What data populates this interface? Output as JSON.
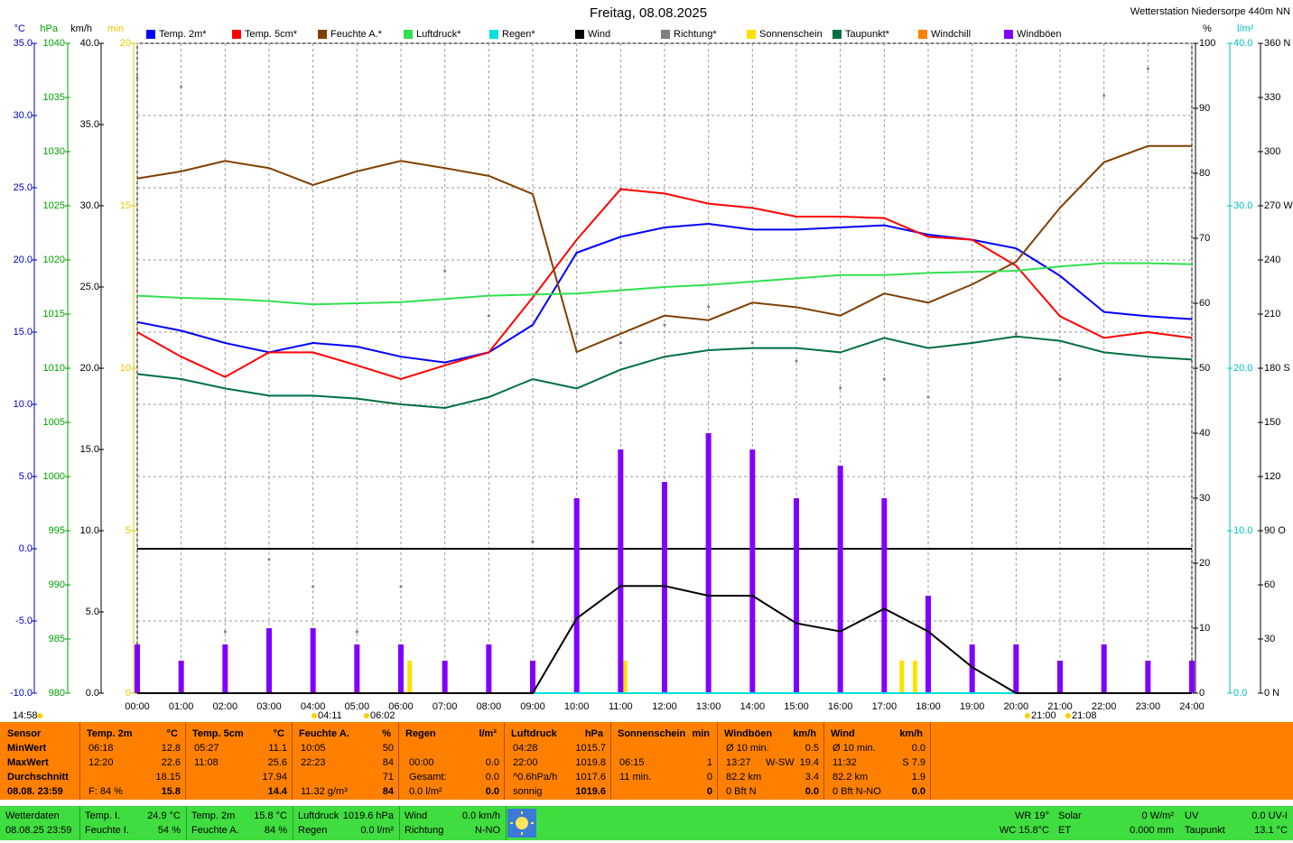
{
  "chart_data": {
    "type": "line",
    "title": "Freitag, 08.08.2025",
    "subtitle": "Wetterstation Niedersorpe 440m NN",
    "x": [
      0,
      1,
      2,
      3,
      4,
      5,
      6,
      7,
      8,
      9,
      10,
      11,
      12,
      13,
      14,
      15,
      16,
      17,
      18,
      19,
      20,
      21,
      22,
      23,
      24
    ],
    "xlim": [
      0,
      24
    ],
    "xticks": [
      {
        "value": 0,
        "label": "00:00"
      },
      {
        "value": 1,
        "label": "01:00"
      },
      {
        "value": 2,
        "label": "02:00"
      },
      {
        "value": 3,
        "label": "03:00"
      },
      {
        "value": 4,
        "label": "04:00"
      },
      {
        "value": 5,
        "label": "05:00"
      },
      {
        "value": 6,
        "label": "06:00"
      },
      {
        "value": 7,
        "label": "07:00"
      },
      {
        "value": 8,
        "label": "08:00"
      },
      {
        "value": 9,
        "label": "09:00"
      },
      {
        "value": 10,
        "label": "10:00"
      },
      {
        "value": 11,
        "label": "11:00"
      },
      {
        "value": 12,
        "label": "12:00"
      },
      {
        "value": 13,
        "label": "13:00"
      },
      {
        "value": 14,
        "label": "14:00"
      },
      {
        "value": 15,
        "label": "15:00"
      },
      {
        "value": 16,
        "label": "16:00"
      },
      {
        "value": 17,
        "label": "17:00"
      },
      {
        "value": 18,
        "label": "18:00"
      },
      {
        "value": 19,
        "label": "19:00"
      },
      {
        "value": 20,
        "label": "20:00"
      },
      {
        "value": 21,
        "label": "21:00"
      },
      {
        "value": 22,
        "label": "22:00"
      },
      {
        "value": 23,
        "label": "23:00"
      },
      {
        "value": 24,
        "label": "24:00"
      }
    ],
    "grid": true,
    "zero_line": 0,
    "axes": {
      "y": {
        "label": "°C",
        "color": "#0000c8",
        "lim": [
          -10,
          35
        ],
        "ticks": [
          {
            "value": 35,
            "label": "35.0"
          },
          {
            "value": 30,
            "label": "30.0"
          },
          {
            "value": 25,
            "label": "25.0"
          },
          {
            "value": 20,
            "label": "20.0"
          },
          {
            "value": 15,
            "label": "15.0"
          },
          {
            "value": 10,
            "label": "10.0"
          },
          {
            "value": 5,
            "label": "5.0"
          },
          {
            "value": 0,
            "label": "0.0"
          },
          {
            "value": -5,
            "label": "-5.0"
          },
          {
            "value": -10,
            "label": "-10.0"
          }
        ]
      },
      "y3": {
        "label": "hPa",
        "color": "#00a000",
        "lim": [
          980,
          1040
        ],
        "ticks": [
          1040,
          1035,
          1030,
          1025,
          1020,
          1015,
          1010,
          1005,
          1000,
          995,
          990,
          985,
          980
        ]
      },
      "y4": {
        "label": "km/h",
        "color": "#000000",
        "lim": [
          0,
          40
        ],
        "ticks": [
          {
            "value": 40,
            "label": "40.0"
          },
          {
            "value": 35,
            "label": "35.0"
          },
          {
            "value": 30,
            "label": "30.0"
          },
          {
            "value": 25,
            "label": "25.0"
          },
          {
            "value": 20,
            "label": "20.0"
          },
          {
            "value": 15,
            "label": "15.0"
          },
          {
            "value": 10,
            "label": "10.0"
          },
          {
            "value": 5,
            "label": "5.0"
          },
          {
            "value": 0,
            "label": "0.0"
          }
        ]
      },
      "y5": {
        "label": "min",
        "color": "#e6c800",
        "lim": [
          0,
          20
        ],
        "ticks": [
          20,
          15,
          10,
          5,
          0
        ]
      },
      "y2": {
        "label": "%",
        "color": "#000000",
        "lim": [
          0,
          100
        ],
        "ticks": [
          100,
          90,
          80,
          70,
          60,
          50,
          40,
          30,
          20,
          10,
          0
        ]
      },
      "y6": {
        "label": "l/m²",
        "color": "#00c0c0",
        "lim": [
          0,
          40
        ],
        "ticks": [
          {
            "value": 40,
            "label": "40.0"
          },
          {
            "value": 30,
            "label": "30.0"
          },
          {
            "value": 20,
            "label": "20.0"
          },
          {
            "value": 10,
            "label": "10.0"
          },
          {
            "value": 0,
            "label": "0.0"
          }
        ]
      },
      "y7": {
        "color": "#000000",
        "lim": [
          0,
          360
        ],
        "ticks": [
          {
            "value": 360,
            "label": "360 N"
          },
          330,
          300,
          {
            "value": 270,
            "label": "270 W"
          },
          240,
          210,
          {
            "value": 180,
            "label": "180 S"
          },
          150,
          120,
          {
            "value": 90,
            "label": "90 O"
          },
          60,
          30,
          {
            "value": 0,
            "label": "0 N"
          }
        ]
      }
    },
    "series": [
      {
        "name": "Temp. 2m*",
        "color": "#0000ff",
        "axis": "y",
        "mark": "line",
        "values": [
          15.7,
          15.1,
          14.25,
          13.6,
          14.25,
          14.0,
          13.3,
          12.9,
          13.6,
          15.5,
          20.5,
          21.6,
          22.25,
          22.5,
          22.1,
          22.1,
          22.25,
          22.4,
          21.75,
          21.4,
          20.8,
          18.9,
          16.4,
          16.1,
          15.9
        ]
      },
      {
        "name": "Temp. 5cm*",
        "color": "#ff0000",
        "axis": "y",
        "mark": "line",
        "values": [
          15.0,
          13.3,
          11.9,
          13.6,
          13.6,
          12.7,
          11.75,
          12.7,
          13.6,
          17.4,
          21.4,
          24.9,
          24.6,
          23.9,
          23.6,
          23.0,
          23.0,
          22.9,
          21.6,
          21.4,
          19.6,
          16.1,
          14.6,
          15.0,
          14.6
        ]
      },
      {
        "name": "Feuchte A.*",
        "color": "#804000",
        "axis": "y2",
        "mark": "line",
        "values": [
          79.2,
          80.3,
          81.9,
          80.8,
          78.2,
          80.3,
          81.9,
          80.8,
          79.6,
          76.8,
          52.5,
          55.3,
          58.1,
          57.4,
          60.1,
          59.4,
          58.1,
          61.5,
          60.1,
          62.9,
          66.4,
          74.7,
          81.7,
          84.2,
          84.2
        ]
      },
      {
        "name": "Luftdruck*",
        "color": "#30e050",
        "axis": "y3",
        "mark": "line",
        "values": [
          1016.7,
          1016.5,
          1016.4,
          1016.2,
          1015.9,
          1016.0,
          1016.1,
          1016.4,
          1016.7,
          1016.8,
          1016.9,
          1017.2,
          1017.5,
          1017.7,
          1018.0,
          1018.3,
          1018.6,
          1018.6,
          1018.8,
          1018.9,
          1019.0,
          1019.4,
          1019.7,
          1019.7,
          1019.6
        ]
      },
      {
        "name": "Regen*",
        "color": "#00e0e0",
        "axis": "y6",
        "mark": "line",
        "values": [
          0,
          0,
          0,
          0,
          0,
          0,
          0,
          0,
          0,
          0,
          0,
          0,
          0,
          0,
          0,
          0,
          0,
          0,
          0,
          0,
          0,
          0,
          0,
          0,
          0
        ]
      },
      {
        "name": "Wind",
        "color": "#000000",
        "axis": "y4",
        "mark": "line",
        "values": [
          0,
          0,
          0,
          0,
          0,
          0,
          0,
          0,
          0,
          0,
          4.6,
          6.6,
          6.6,
          6.0,
          6.0,
          4.3,
          3.8,
          5.2,
          3.8,
          1.6,
          0,
          0,
          0,
          0,
          0
        ]
      },
      {
        "name": "Richtung*",
        "color": "#808080",
        "axis": "y7",
        "mark": "scatter",
        "values": [
          341,
          336,
          34,
          74,
          59,
          34,
          59,
          234,
          209,
          84,
          199,
          194,
          204,
          214,
          194,
          184,
          169,
          174,
          164,
          194,
          199,
          174,
          331,
          346,
          64
        ]
      },
      {
        "name": "Sonnenschein",
        "color": "#ffe000",
        "axis": "y5",
        "mark": "bar",
        "x": [
          6.2,
          11.1,
          17.4,
          17.7
        ],
        "values": [
          1,
          1,
          1,
          1
        ]
      },
      {
        "name": "Taupunkt*",
        "color": "#007040",
        "axis": "y",
        "mark": "line",
        "values": [
          12.1,
          11.75,
          11.1,
          10.6,
          10.6,
          10.4,
          10.0,
          9.75,
          10.5,
          11.75,
          11.1,
          12.4,
          13.3,
          13.75,
          13.9,
          13.9,
          13.6,
          14.6,
          13.9,
          14.25,
          14.7,
          14.4,
          13.6,
          13.3,
          13.1
        ]
      },
      {
        "name": "Windchill",
        "color": "#ff8000"
      },
      {
        "name": "Windböen",
        "color": "#8000ff",
        "axis": "y4",
        "mark": "bar",
        "values": [
          3,
          2,
          3,
          4,
          4,
          3,
          3,
          2,
          3,
          2,
          12,
          15,
          13,
          16,
          15,
          12,
          14,
          12,
          6,
          3,
          3,
          2,
          3,
          2,
          2
        ]
      }
    ],
    "sun_times": [
      "14:58",
      "04:11",
      "06:02",
      "21:00",
      "21:08"
    ]
  },
  "stats": {
    "sensor": {
      "header": "Sensor",
      "rows": [
        "MinWert",
        "MaxWert",
        "Durchschnitt",
        "08.08. 23:59"
      ]
    },
    "blocks": [
      {
        "name": "Temp. 2m",
        "unit": "°C",
        "rows": [
          {
            "l": "06:18",
            "r": "12.8"
          },
          {
            "l": "12:20",
            "r": "22.6"
          },
          {
            "r": "18.15"
          },
          {
            "l": "F: 84 %",
            "r": "15.8"
          }
        ]
      },
      {
        "name": "Temp. 5cm",
        "unit": "°C",
        "rows": [
          {
            "l": "05:27",
            "r": "11.1"
          },
          {
            "l": "11:08",
            "r": "25.6"
          },
          {
            "r": "17.94"
          },
          {
            "r": "14.4"
          }
        ]
      },
      {
        "name": "Feuchte A.",
        "unit": "%",
        "rows": [
          {
            "l": "10:05",
            "r": "50"
          },
          {
            "l": "22:23",
            "r": "84"
          },
          {
            "r": "71"
          },
          {
            "l": "11.32 g/m³",
            "r": "84"
          }
        ]
      },
      {
        "name": "Regen",
        "unit": "l/m²",
        "rows": [
          {},
          {
            "l": "00:00",
            "r": "0.0"
          },
          {
            "l": "Gesamt:",
            "r": "0.0"
          },
          {
            "l": "0.0 l/m²",
            "r": "0.0"
          }
        ]
      },
      {
        "name": "Luftdruck",
        "unit": "hPa",
        "rows": [
          {
            "l": "04:28",
            "r": "1015.7"
          },
          {
            "l": "22:00",
            "r": "1019.8"
          },
          {
            "l": "^0.6hPa/h",
            "r": "1017.6"
          },
          {
            "l": "sonnig",
            "r": "1019.6"
          }
        ]
      },
      {
        "name": "Sonnenschein",
        "unit": "min",
        "rows": [
          {},
          {
            "l": "06:15",
            "r": "1"
          },
          {
            "l": "11 min.",
            "r": "0"
          },
          {
            "r": "0"
          }
        ]
      },
      {
        "name": "Windböen",
        "unit": "km/h",
        "rows": [
          {
            "l": "Ø 10 min.",
            "r": "0.5"
          },
          {
            "l": "13:27",
            "m": "W-SW",
            "r": "19.4"
          },
          {
            "l": "82.2 km",
            "r": "3.4"
          },
          {
            "l": "0 Bft N",
            "r": "0.0"
          }
        ]
      },
      {
        "name": "Wind",
        "unit": "km/h",
        "rows": [
          {
            "l": "Ø 10 min.",
            "r": "0.0"
          },
          {
            "l": "11:32",
            "r": "S 7.9"
          },
          {
            "l": "82.2 km",
            "r": "1.9"
          },
          {
            "l": "0 Bft N-NO",
            "r": "0.0"
          }
        ]
      }
    ]
  },
  "status": [
    {
      "rows": [
        [
          "Wetterdaten"
        ],
        [
          "08.08.25 23:59"
        ]
      ]
    },
    {
      "rows": [
        [
          "Temp. I.",
          "24.9 °C"
        ],
        [
          "Feuchte I.",
          "54 %"
        ]
      ]
    },
    {
      "rows": [
        [
          "Temp. 2m",
          "15.8 °C"
        ],
        [
          "Feuchte A.",
          "84 %"
        ]
      ]
    },
    {
      "rows": [
        [
          "Luftdruck",
          "1019.6 hPa"
        ],
        [
          "Regen",
          "0.0 l/m²"
        ]
      ]
    },
    {
      "rows": [
        [
          "Wind",
          "0.0 km/h"
        ],
        [
          "Richtung",
          "N-NO"
        ]
      ]
    },
    {
      "rows": [
        [
          "WR 19°"
        ],
        [
          "WC 15.8°C"
        ]
      ]
    },
    {
      "rows": [
        [
          "Solar",
          "0 W/m²"
        ],
        [
          "ET",
          "0.000 mm"
        ]
      ]
    },
    {
      "rows": [
        [
          "UV",
          "0.0 UV-I"
        ],
        [
          "Taupunkt",
          "13.1 °C"
        ]
      ]
    }
  ]
}
